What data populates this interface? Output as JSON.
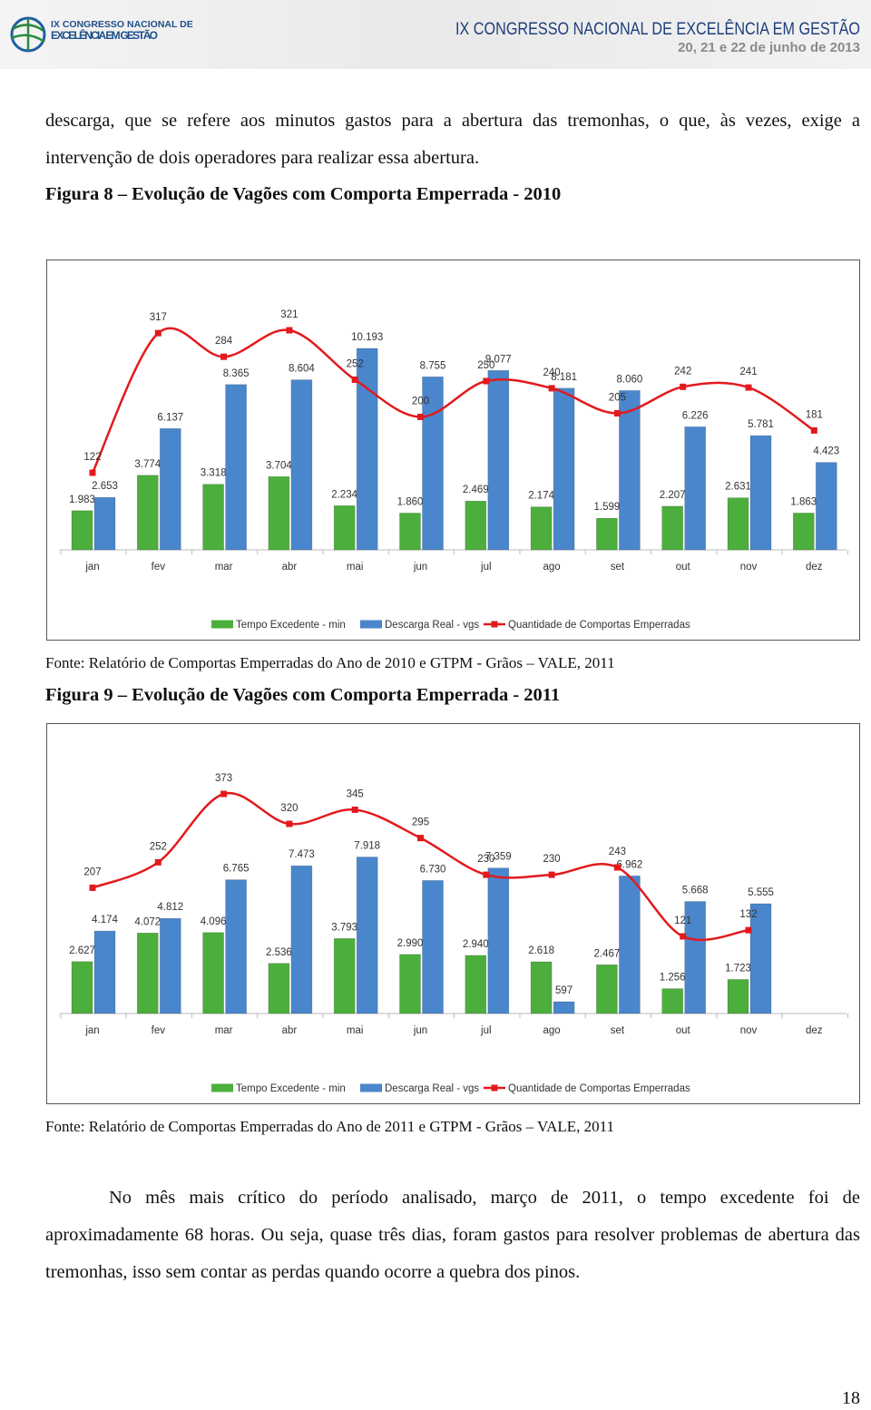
{
  "header": {
    "logo_line1": "IX CONGRESSO NACIONAL DE",
    "logo_line2": "EXCELÊNCIA EM GESTÃO",
    "title": "IX CONGRESSO NACIONAL DE EXCELÊNCIA EM GESTÃO",
    "date": "20, 21 e 22 de junho de 2013"
  },
  "paragraphs": [
    "descarga, que se refere aos minutos gastos para a abertura das tremonhas, o que, às vezes, exige a intervenção de dois operadores para realizar essa abertura.",
    "No mês mais crítico do período analisado, março de 2011, o tempo excedente foi de aproximadamente 68 horas. Ou seja, quase três dias, foram gastos para resolver problemas de abertura das tremonhas, isso sem contar as perdas quando ocorre a quebra dos pinos."
  ],
  "figures": [
    {
      "caption": "Figura 8 – Evolução de Vagões com Comporta Emperrada - 2010",
      "source": "Fonte: Relatório de Comportas Emperradas do Ano de 2010 e GTPM - Grãos – VALE, 2011"
    },
    {
      "caption": "Figura 9 – Evolução de Vagões com Comporta Emperrada - 2011",
      "source": "Fonte: Relatório de Comportas Emperradas do Ano de 2011 e GTPM - Grãos – VALE, 2011"
    }
  ],
  "chart_data": [
    {
      "type": "bar",
      "categories": [
        "jan",
        "fev",
        "mar",
        "abr",
        "mai",
        "jun",
        "jul",
        "ago",
        "set",
        "out",
        "nov",
        "dez"
      ],
      "series": [
        {
          "name": "Tempo Excedente - min",
          "color": "#4cae3c",
          "values": [
            1983,
            3774,
            3318,
            3704,
            2234,
            1860,
            2469,
            2174,
            1599,
            2207,
            2631,
            1863
          ],
          "value_labels": [
            "1.983",
            "3.774",
            "3.318",
            "3.704",
            "2.234",
            "1.860",
            "2.469",
            "2.174",
            "1.599",
            "2.207",
            "2.631",
            "1.863"
          ]
        },
        {
          "name": "Descarga Real - vgs",
          "color": "#4a86cc",
          "values": [
            2653,
            6137,
            8365,
            8604,
            10193,
            8755,
            9077,
            8181,
            8060,
            6226,
            5781,
            4423
          ],
          "value_labels": [
            "2.653",
            "6.137",
            "8.365",
            "8.604",
            "10.193",
            "8.755",
            "9.077",
            "8.181",
            "8.060",
            "6.226",
            "5.781",
            "4.423"
          ]
        },
        {
          "name": "Quantidade de Comportas Emperradas",
          "color": "#e3191c",
          "type": "line",
          "axis": "y2",
          "values": [
            122,
            317,
            284,
            321,
            252,
            200,
            250,
            240,
            205,
            242,
            241,
            181
          ]
        }
      ]
    },
    {
      "type": "bar",
      "categories": [
        "jan",
        "fev",
        "mar",
        "abr",
        "mai",
        "jun",
        "jul",
        "ago",
        "set",
        "out",
        "nov",
        "dez"
      ],
      "series": [
        {
          "name": "Tempo Excedente - min",
          "color": "#4cae3c",
          "values": [
            2627,
            4072,
            4096,
            2536,
            3793,
            2990,
            2940,
            2618,
            2467,
            1256,
            1723,
            null
          ],
          "value_labels": [
            "2.627",
            "4.072",
            "4.096",
            "2.536",
            "3.793",
            "2.990",
            "2.940",
            "2.618",
            "2.467",
            "1.256",
            "1.723",
            null
          ]
        },
        {
          "name": "Descarga Real - vgs",
          "color": "#4a86cc",
          "values": [
            4174,
            4812,
            6765,
            7473,
            7918,
            6730,
            7359,
            597,
            6962,
            5668,
            5555,
            null
          ],
          "value_labels": [
            "4.174",
            "4.812",
            "6.765",
            "7.473",
            "7.918",
            "6.730",
            "7.359",
            "597",
            "6.962",
            "5.668",
            "5.555",
            null
          ]
        },
        {
          "name": "Quantidade de Comportas Emperradas",
          "color": "#e3191c",
          "type": "line",
          "axis": "y2",
          "values": [
            207,
            252,
            373,
            320,
            345,
            295,
            230,
            230,
            243,
            121,
            132,
            null
          ]
        }
      ]
    }
  ],
  "page_number": "18"
}
